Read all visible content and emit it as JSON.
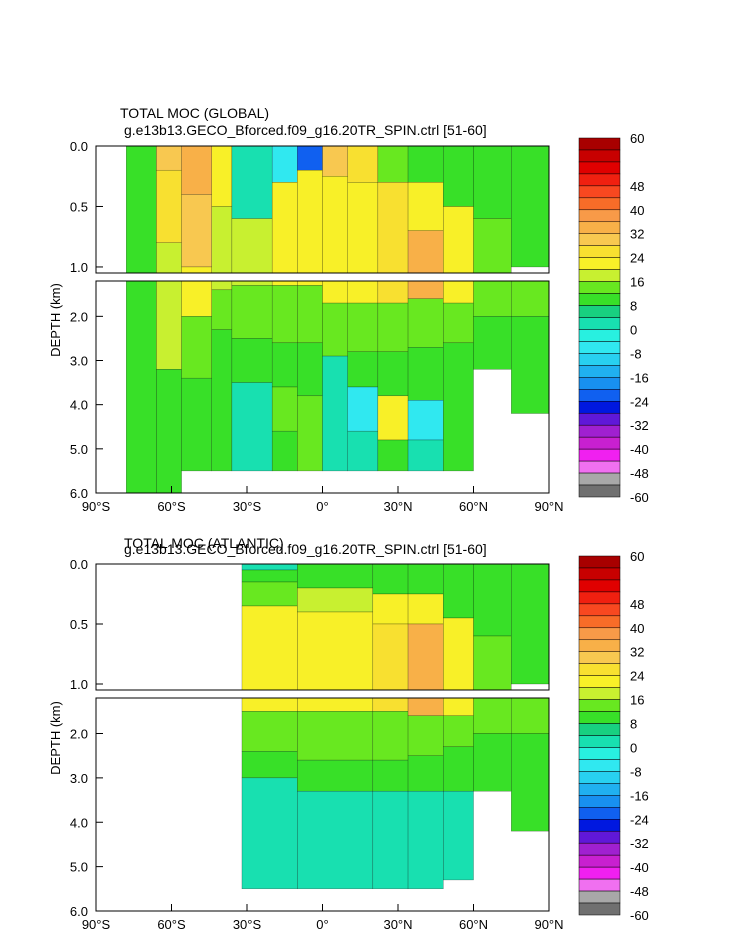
{
  "chart_data": [
    {
      "type": "heatmap",
      "title": "TOTAL MOC (GLOBAL)",
      "subtitle": "g.e13b13.GECO_Bforced.f09_g16.20TR_SPIN.ctrl [51-60]",
      "ylabel": "DEPTH (km)",
      "x_ticks": [
        "90°S",
        "60°S",
        "30°S",
        "0°",
        "30°N",
        "60°N",
        "90°N"
      ],
      "x_tick_values": [
        -90,
        -60,
        -30,
        0,
        30,
        60,
        90
      ],
      "y_ticks_upper": [
        "0.0",
        "0.5",
        "1.0"
      ],
      "y_ticks_upper_values": [
        0,
        0.5,
        1.0
      ],
      "y_ticks_lower": [
        "2.0",
        "3.0",
        "4.0",
        "5.0",
        "6.0"
      ],
      "y_ticks_lower_values": [
        2,
        3,
        4,
        5,
        6
      ],
      "xlim": [
        -90,
        90
      ],
      "ylim_upper": [
        0,
        1.05
      ],
      "ylim_lower": [
        1.2,
        6.0
      ],
      "x_extent": [
        -78,
        90
      ],
      "cells": [
        {
          "x": [
            -78,
            -66
          ],
          "y": [
            0,
            6
          ],
          "v": 4
        },
        {
          "x": [
            -66,
            -56
          ],
          "y": [
            0,
            0.2
          ],
          "v": 24
        },
        {
          "x": [
            -66,
            -56
          ],
          "y": [
            0.2,
            0.8
          ],
          "v": 20
        },
        {
          "x": [
            -66,
            -56
          ],
          "y": [
            0.8,
            3.2
          ],
          "v": 12
        },
        {
          "x": [
            -66,
            -56
          ],
          "y": [
            3.2,
            6
          ],
          "v": 4
        },
        {
          "x": [
            -56,
            -44
          ],
          "y": [
            0,
            0.4
          ],
          "v": 28
        },
        {
          "x": [
            -56,
            -44
          ],
          "y": [
            0.4,
            1.0
          ],
          "v": 24
        },
        {
          "x": [
            -56,
            -44
          ],
          "y": [
            1.0,
            2.0
          ],
          "v": 16
        },
        {
          "x": [
            -56,
            -44
          ],
          "y": [
            2.0,
            3.4
          ],
          "v": 8
        },
        {
          "x": [
            -56,
            -44
          ],
          "y": [
            3.4,
            5.5
          ],
          "v": 4
        },
        {
          "x": [
            -44,
            -36
          ],
          "y": [
            0,
            0.5
          ],
          "v": 16
        },
        {
          "x": [
            -44,
            -36
          ],
          "y": [
            0.5,
            1.4
          ],
          "v": 12
        },
        {
          "x": [
            -44,
            -36
          ],
          "y": [
            1.4,
            2.3
          ],
          "v": 8
        },
        {
          "x": [
            -44,
            -36
          ],
          "y": [
            2.3,
            5.5
          ],
          "v": 4
        },
        {
          "x": [
            -36,
            -20
          ],
          "y": [
            0,
            0.6
          ],
          "v": -4
        },
        {
          "x": [
            -36,
            -20
          ],
          "y": [
            0.6,
            1.3
          ],
          "v": 12
        },
        {
          "x": [
            -36,
            -20
          ],
          "y": [
            1.3,
            2.5
          ],
          "v": 8
        },
        {
          "x": [
            -36,
            -20
          ],
          "y": [
            2.5,
            3.5
          ],
          "v": 4
        },
        {
          "x": [
            -36,
            -20
          ],
          "y": [
            3.5,
            5.5
          ],
          "v": -4
        },
        {
          "x": [
            -20,
            -10
          ],
          "y": [
            0,
            0.3
          ],
          "v": -12
        },
        {
          "x": [
            -20,
            -10
          ],
          "y": [
            0.3,
            1.3
          ],
          "v": 16
        },
        {
          "x": [
            -20,
            -10
          ],
          "y": [
            1.3,
            2.6
          ],
          "v": 8
        },
        {
          "x": [
            -20,
            -10
          ],
          "y": [
            2.6,
            3.6
          ],
          "v": 4
        },
        {
          "x": [
            -20,
            -10
          ],
          "y": [
            3.6,
            4.6
          ],
          "v": 8
        },
        {
          "x": [
            -20,
            -10
          ],
          "y": [
            4.6,
            5.5
          ],
          "v": 4
        },
        {
          "x": [
            -10,
            0
          ],
          "y": [
            0,
            0.2
          ],
          "v": -28
        },
        {
          "x": [
            -10,
            0
          ],
          "y": [
            0.2,
            1.3
          ],
          "v": 16
        },
        {
          "x": [
            -10,
            0
          ],
          "y": [
            1.3,
            2.6
          ],
          "v": 8
        },
        {
          "x": [
            -10,
            0
          ],
          "y": [
            2.6,
            3.8
          ],
          "v": 4
        },
        {
          "x": [
            -10,
            0
          ],
          "y": [
            3.8,
            5.5
          ],
          "v": 8
        },
        {
          "x": [
            0,
            10
          ],
          "y": [
            0,
            0.25
          ],
          "v": 24
        },
        {
          "x": [
            0,
            10
          ],
          "y": [
            0.25,
            1.7
          ],
          "v": 16
        },
        {
          "x": [
            0,
            10
          ],
          "y": [
            1.7,
            2.9
          ],
          "v": 8
        },
        {
          "x": [
            0,
            10
          ],
          "y": [
            2.9,
            5.5
          ],
          "v": -4
        },
        {
          "x": [
            10,
            22
          ],
          "y": [
            0,
            0.3
          ],
          "v": 20
        },
        {
          "x": [
            10,
            22
          ],
          "y": [
            0.3,
            1.7
          ],
          "v": 16
        },
        {
          "x": [
            10,
            22
          ],
          "y": [
            1.7,
            2.8
          ],
          "v": 8
        },
        {
          "x": [
            10,
            22
          ],
          "y": [
            2.8,
            3.6
          ],
          "v": 4
        },
        {
          "x": [
            10,
            22
          ],
          "y": [
            3.6,
            4.6
          ],
          "v": -12
        },
        {
          "x": [
            10,
            22
          ],
          "y": [
            4.6,
            5.5
          ],
          "v": -4
        },
        {
          "x": [
            22,
            34
          ],
          "y": [
            0,
            0.3
          ],
          "v": 8
        },
        {
          "x": [
            22,
            34
          ],
          "y": [
            0.3,
            1.7
          ],
          "v": 20
        },
        {
          "x": [
            22,
            34
          ],
          "y": [
            1.7,
            2.8
          ],
          "v": 8
        },
        {
          "x": [
            22,
            34
          ],
          "y": [
            2.8,
            3.8
          ],
          "v": 4
        },
        {
          "x": [
            22,
            34
          ],
          "y": [
            3.8,
            4.8
          ],
          "v": 16
        },
        {
          "x": [
            22,
            34
          ],
          "y": [
            4.8,
            5.5
          ],
          "v": 4
        },
        {
          "x": [
            34,
            48
          ],
          "y": [
            0,
            0.3
          ],
          "v": 4
        },
        {
          "x": [
            34,
            48
          ],
          "y": [
            0.3,
            0.7
          ],
          "v": 16
        },
        {
          "x": [
            34,
            48
          ],
          "y": [
            0.7,
            1.6
          ],
          "v": 28
        },
        {
          "x": [
            34,
            48
          ],
          "y": [
            1.6,
            2.7
          ],
          "v": 8
        },
        {
          "x": [
            34,
            48
          ],
          "y": [
            2.7,
            3.9
          ],
          "v": 4
        },
        {
          "x": [
            34,
            48
          ],
          "y": [
            3.9,
            4.8
          ],
          "v": -12
        },
        {
          "x": [
            34,
            48
          ],
          "y": [
            4.8,
            5.5
          ],
          "v": -4
        },
        {
          "x": [
            48,
            60
          ],
          "y": [
            0,
            0.5
          ],
          "v": 4
        },
        {
          "x": [
            48,
            60
          ],
          "y": [
            0.5,
            1.7
          ],
          "v": 16
        },
        {
          "x": [
            48,
            60
          ],
          "y": [
            1.7,
            2.6
          ],
          "v": 8
        },
        {
          "x": [
            48,
            60
          ],
          "y": [
            2.6,
            5.5
          ],
          "v": 4
        },
        {
          "x": [
            60,
            75
          ],
          "y": [
            0,
            0.6
          ],
          "v": 4
        },
        {
          "x": [
            60,
            75
          ],
          "y": [
            0.6,
            2.0
          ],
          "v": 8
        },
        {
          "x": [
            60,
            75
          ],
          "y": [
            2.0,
            3.2
          ],
          "v": 4
        },
        {
          "x": [
            75,
            90
          ],
          "y": [
            0,
            1.0
          ],
          "v": 4
        },
        {
          "x": [
            75,
            90
          ],
          "y": [
            1.2,
            2.0
          ],
          "v": 8
        },
        {
          "x": [
            75,
            90
          ],
          "y": [
            2.0,
            4.2
          ],
          "v": 4
        }
      ]
    },
    {
      "type": "heatmap",
      "title": "TOTAL MOC (ATLANTIC)",
      "subtitle": "g.e13b13.GECO_Bforced.f09_g16.20TR_SPIN.ctrl [51-60]",
      "ylabel": "DEPTH (km)",
      "x_ticks": [
        "90°S",
        "60°S",
        "30°S",
        "0°",
        "30°N",
        "60°N",
        "90°N"
      ],
      "x_tick_values": [
        -90,
        -60,
        -30,
        0,
        30,
        60,
        90
      ],
      "y_ticks_upper": [
        "0.0",
        "0.5",
        "1.0"
      ],
      "y_ticks_upper_values": [
        0,
        0.5,
        1.0
      ],
      "y_ticks_lower": [
        "2.0",
        "3.0",
        "4.0",
        "5.0",
        "6.0"
      ],
      "y_ticks_lower_values": [
        2,
        3,
        4,
        5,
        6
      ],
      "xlim": [
        -90,
        90
      ],
      "ylim_upper": [
        0,
        1.05
      ],
      "ylim_lower": [
        1.2,
        6.0
      ],
      "x_extent": [
        -32,
        90
      ],
      "cells": [
        {
          "x": [
            -32,
            -10
          ],
          "y": [
            0,
            0.05
          ],
          "v": -4
        },
        {
          "x": [
            -32,
            -10
          ],
          "y": [
            0.05,
            0.15
          ],
          "v": 4
        },
        {
          "x": [
            -32,
            -10
          ],
          "y": [
            0.15,
            0.35
          ],
          "v": 8
        },
        {
          "x": [
            -32,
            -10
          ],
          "y": [
            0.35,
            1.5
          ],
          "v": 16
        },
        {
          "x": [
            -32,
            -10
          ],
          "y": [
            1.5,
            2.4
          ],
          "v": 8
        },
        {
          "x": [
            -32,
            -10
          ],
          "y": [
            2.4,
            3.0
          ],
          "v": 4
        },
        {
          "x": [
            -32,
            -10
          ],
          "y": [
            3.0,
            5.5
          ],
          "v": -4
        },
        {
          "x": [
            -10,
            20
          ],
          "y": [
            0,
            0.2
          ],
          "v": 4
        },
        {
          "x": [
            -10,
            20
          ],
          "y": [
            0.2,
            0.4
          ],
          "v": 12
        },
        {
          "x": [
            -10,
            20
          ],
          "y": [
            0.4,
            1.5
          ],
          "v": 16
        },
        {
          "x": [
            -10,
            20
          ],
          "y": [
            1.5,
            2.6
          ],
          "v": 8
        },
        {
          "x": [
            -10,
            20
          ],
          "y": [
            2.6,
            3.3
          ],
          "v": 4
        },
        {
          "x": [
            -10,
            20
          ],
          "y": [
            3.3,
            5.5
          ],
          "v": -4
        },
        {
          "x": [
            20,
            34
          ],
          "y": [
            0,
            0.25
          ],
          "v": 4
        },
        {
          "x": [
            20,
            34
          ],
          "y": [
            0.25,
            0.5
          ],
          "v": 16
        },
        {
          "x": [
            20,
            34
          ],
          "y": [
            0.5,
            1.5
          ],
          "v": 20
        },
        {
          "x": [
            20,
            34
          ],
          "y": [
            1.5,
            2.6
          ],
          "v": 8
        },
        {
          "x": [
            20,
            34
          ],
          "y": [
            2.6,
            3.3
          ],
          "v": 4
        },
        {
          "x": [
            20,
            34
          ],
          "y": [
            3.3,
            5.5
          ],
          "v": -4
        },
        {
          "x": [
            34,
            48
          ],
          "y": [
            0,
            0.25
          ],
          "v": 4
        },
        {
          "x": [
            34,
            48
          ],
          "y": [
            0.25,
            0.5
          ],
          "v": 16
        },
        {
          "x": [
            34,
            48
          ],
          "y": [
            0.5,
            1.6
          ],
          "v": 28
        },
        {
          "x": [
            34,
            48
          ],
          "y": [
            1.6,
            2.5
          ],
          "v": 8
        },
        {
          "x": [
            34,
            48
          ],
          "y": [
            2.5,
            3.3
          ],
          "v": 4
        },
        {
          "x": [
            34,
            48
          ],
          "y": [
            3.3,
            5.5
          ],
          "v": -4
        },
        {
          "x": [
            48,
            60
          ],
          "y": [
            0,
            0.45
          ],
          "v": 4
        },
        {
          "x": [
            48,
            60
          ],
          "y": [
            0.45,
            1.6
          ],
          "v": 16
        },
        {
          "x": [
            48,
            60
          ],
          "y": [
            1.6,
            2.3
          ],
          "v": 8
        },
        {
          "x": [
            48,
            60
          ],
          "y": [
            2.3,
            3.3
          ],
          "v": 4
        },
        {
          "x": [
            48,
            60
          ],
          "y": [
            3.3,
            5.3
          ],
          "v": -4
        },
        {
          "x": [
            60,
            75
          ],
          "y": [
            0,
            0.6
          ],
          "v": 4
        },
        {
          "x": [
            60,
            75
          ],
          "y": [
            0.6,
            2.0
          ],
          "v": 8
        },
        {
          "x": [
            60,
            75
          ],
          "y": [
            2.0,
            3.3
          ],
          "v": 4
        },
        {
          "x": [
            75,
            90
          ],
          "y": [
            0,
            1.0
          ],
          "v": 4
        },
        {
          "x": [
            75,
            90
          ],
          "y": [
            1.2,
            2.0
          ],
          "v": 8
        },
        {
          "x": [
            75,
            90
          ],
          "y": [
            2.0,
            4.2
          ],
          "v": 4
        }
      ]
    }
  ],
  "colorbar": {
    "labels": [
      "60",
      "48",
      "40",
      "32",
      "24",
      "16",
      "8",
      "0",
      "-8",
      "-16",
      "-24",
      "-32",
      "-40",
      "-48",
      "-60"
    ],
    "label_values": [
      60,
      48,
      40,
      32,
      24,
      16,
      8,
      0,
      -8,
      -16,
      -24,
      -32,
      -40,
      -48,
      -60
    ],
    "levels_top_to_bottom": [
      56,
      52,
      48,
      44,
      40,
      36,
      32,
      28,
      24,
      20,
      16,
      12,
      8,
      4,
      0,
      -4,
      -8,
      -12,
      -16,
      -20,
      -24,
      -28,
      -32,
      -36,
      -40,
      -44,
      -48,
      -52,
      -56,
      -60
    ],
    "colors_top_to_bottom": [
      "#a80000",
      "#c80000",
      "#e00000",
      "#f02010",
      "#f84820",
      "#f86c28",
      "#f89a48",
      "#f8b048",
      "#f8c850",
      "#f8e030",
      "#f8f028",
      "#c8f030",
      "#68e820",
      "#38e028",
      "#18d080",
      "#18e0b0",
      "#28f0e0",
      "#30e8f0",
      "#28d0f0",
      "#20b0f0",
      "#1890f0",
      "#1060f0",
      "#0018e0",
      "#6018d8",
      "#a020d0",
      "#c820d0",
      "#f020f0",
      "#f070f0",
      "#a8a8a8",
      "#707070"
    ]
  }
}
